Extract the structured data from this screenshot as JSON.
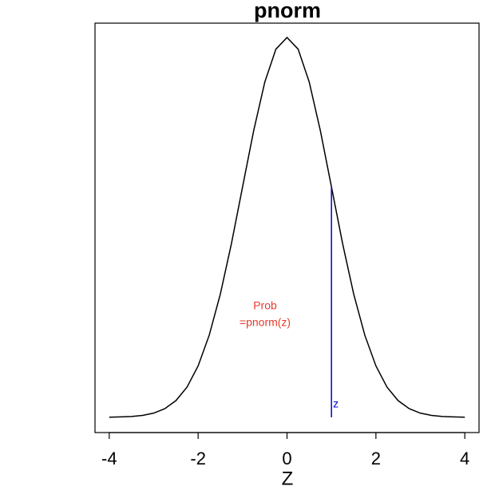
{
  "chart_data": {
    "type": "line",
    "title": "pnorm",
    "x_label": "Z",
    "x": [
      -4,
      -3.75,
      -3.5,
      -3.25,
      -3,
      -2.75,
      -2.5,
      -2.25,
      -2,
      -1.75,
      -1.5,
      -1.25,
      -1,
      -0.75,
      -0.5,
      -0.25,
      0,
      0.25,
      0.5,
      0.75,
      1,
      1.25,
      1.5,
      1.75,
      2,
      2.25,
      2.5,
      2.75,
      3,
      3.25,
      3.5,
      3.75,
      4
    ],
    "series": [
      {
        "color": "#000000",
        "values": [
          0.0001,
          0.0004,
          0.0009,
          0.002,
          0.0044,
          0.0091,
          0.0175,
          0.0317,
          0.054,
          0.0863,
          0.1295,
          0.1826,
          0.242,
          0.3011,
          0.3521,
          0.3867,
          0.3989,
          0.3867,
          0.3521,
          0.3011,
          0.242,
          0.1826,
          0.1295,
          0.0863,
          0.054,
          0.0317,
          0.0175,
          0.0091,
          0.0044,
          0.002,
          0.0009,
          0.0004,
          0.0001
        ]
      }
    ],
    "xlim": [
      -4.32,
      4.32
    ],
    "ylim": [
      -0.016,
      0.414
    ],
    "xticks": [
      -4,
      -2,
      0,
      2,
      4
    ],
    "marker_line": {
      "x": 1,
      "y": 0.242,
      "label": "z",
      "color": "#0000cc"
    },
    "annotation": {
      "lines": [
        "Prob",
        "=pnorm(z)"
      ],
      "color": "#e8392b"
    }
  }
}
